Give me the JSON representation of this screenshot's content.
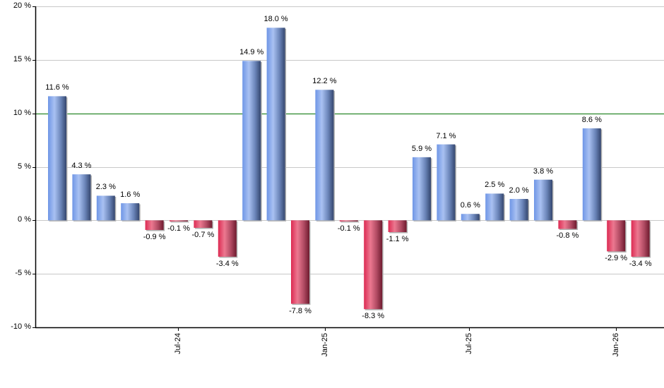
{
  "chart_data": {
    "type": "bar",
    "title": "",
    "xlabel": "",
    "ylabel": "",
    "ylim": [
      -10,
      20
    ],
    "y_ticks": [
      "20 %",
      "15 %",
      "10 %",
      "5 %",
      "0 %",
      "-5 %",
      "-10 %"
    ],
    "y_tick_values": [
      20,
      15,
      10,
      5,
      0,
      -5,
      -10
    ],
    "x_tick_labels": [
      "Jul-24",
      "Jan-25",
      "Jul-25",
      "Jan-26"
    ],
    "x_tick_bar_positions": [
      5.5,
      11.5,
      17.5,
      23.5
    ],
    "grid": true,
    "legend": null,
    "reference_line": {
      "value": 10,
      "color": "#007000"
    },
    "values": [
      11.6,
      4.3,
      2.3,
      1.6,
      -0.9,
      -0.1,
      -0.7,
      -3.4,
      14.9,
      18.0,
      -7.8,
      12.2,
      -0.1,
      -8.3,
      -1.1,
      5.9,
      7.1,
      0.6,
      2.5,
      2.0,
      3.8,
      -0.8,
      8.6,
      -2.9,
      -3.4
    ],
    "labels": [
      "11.6 %",
      "4.3 %",
      "2.3 %",
      "1.6 %",
      "-0.9 %",
      "-0.1 %",
      "-0.7 %",
      "-3.4 %",
      "14.9 %",
      "18.0 %",
      "-7.8 %",
      "12.2 %",
      "-0.1 %",
      "-8.3 %",
      "-1.1 %",
      "5.9 %",
      "7.1 %",
      "0.6 %",
      "2.5 %",
      "2.0 %",
      "3.8 %",
      "-0.8 %",
      "8.6 %",
      "-2.9 %",
      "-3.4 %"
    ],
    "colors": {
      "positive": "#7a9ee8",
      "negative": "#d8385a",
      "grid": "#c8c8c8",
      "axis": "#000000"
    }
  }
}
